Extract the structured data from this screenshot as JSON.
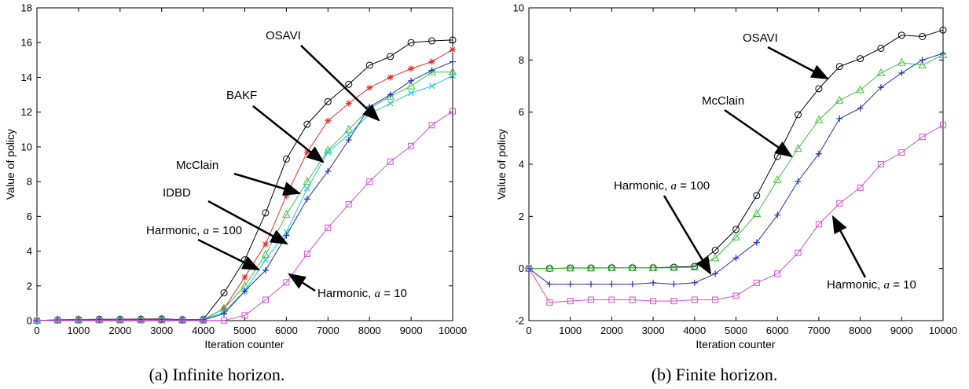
{
  "chart_data": [
    {
      "type": "line",
      "caption": "(a) Infinite horizon.",
      "xlabel": "Iteration counter",
      "ylabel": "Value of policy",
      "xlim": [
        0,
        10000
      ],
      "ylim": [
        0,
        18
      ],
      "xticks": [
        "0",
        "1000",
        "2000",
        "3000",
        "4000",
        "5000",
        "6000",
        "7000",
        "8000",
        "9000",
        "10000"
      ],
      "yticks": [
        "0",
        "2",
        "4",
        "6",
        "8",
        "10",
        "12",
        "14",
        "16",
        "18"
      ],
      "x": [
        0,
        500,
        1000,
        1500,
        2000,
        2500,
        3000,
        3500,
        4000,
        4500,
        5000,
        5500,
        6000,
        6500,
        7000,
        7500,
        8000,
        8500,
        9000,
        9500,
        10000
      ],
      "series": [
        {
          "name": "OSAVI",
          "color": "#000000",
          "marker": "circle",
          "values": [
            0,
            0.05,
            0.07,
            0.08,
            0.08,
            0.09,
            0.1,
            0.06,
            0.07,
            1.6,
            3.5,
            6.2,
            9.3,
            11.3,
            12.6,
            13.6,
            14.7,
            15.2,
            16.0,
            16.1,
            16.15
          ]
        },
        {
          "name": "BAKF",
          "color": "#e0302a",
          "marker": "star",
          "values": [
            0,
            0.05,
            0.06,
            0.07,
            0.07,
            0.08,
            0.08,
            0.05,
            0.06,
            0.7,
            2.5,
            4.4,
            7.2,
            9.7,
            11.5,
            12.5,
            13.4,
            14.0,
            14.5,
            14.9,
            15.6
          ]
        },
        {
          "name": "McClain",
          "color": "#40c040",
          "marker": "triangle",
          "values": [
            0,
            0.04,
            0.05,
            0.06,
            0.06,
            0.07,
            0.07,
            0.04,
            0.05,
            0.7,
            2.0,
            3.8,
            6.1,
            8.0,
            9.8,
            11.0,
            12.2,
            12.9,
            13.5,
            14.3,
            14.3
          ]
        },
        {
          "name": "IDBD",
          "color": "#20c8d8",
          "marker": "x",
          "values": [
            0,
            0.04,
            0.05,
            0.06,
            0.06,
            0.07,
            0.07,
            0.04,
            0.05,
            0.5,
            1.7,
            3.5,
            5.1,
            7.6,
            9.7,
            10.7,
            11.9,
            12.5,
            13.1,
            13.5,
            14.1
          ]
        },
        {
          "name": "Harmonic, a=100",
          "color": "#2030b0",
          "marker": "plus",
          "values": [
            0,
            0.03,
            0.04,
            0.05,
            0.05,
            0.06,
            0.06,
            0.03,
            0.04,
            0.4,
            1.7,
            2.9,
            4.9,
            7.0,
            8.6,
            10.4,
            12.3,
            13.0,
            13.8,
            14.4,
            14.9
          ]
        },
        {
          "name": "Harmonic, a=10",
          "color": "#d050d0",
          "marker": "square",
          "values": [
            0,
            0.01,
            0.01,
            0.02,
            0.02,
            0.02,
            0.02,
            0.01,
            0.01,
            0.01,
            0.3,
            1.2,
            2.2,
            3.85,
            5.35,
            6.7,
            8.0,
            9.15,
            10.05,
            11.25,
            12.05
          ]
        }
      ],
      "annotations": [
        {
          "label": "OSAVI"
        },
        {
          "label": "BAKF"
        },
        {
          "label": "McClain"
        },
        {
          "label": "IDBD"
        },
        {
          "label": "Harmonic, ",
          "param": "a",
          "value": " = 100"
        },
        {
          "label": "Harmonic, ",
          "param": "a",
          "value": " = 10"
        }
      ]
    },
    {
      "type": "line",
      "caption": "(b) Finite horizon.",
      "xlabel": "Iteration counter",
      "ylabel": "Value of policy",
      "xlim": [
        0,
        10000
      ],
      "ylim": [
        -2,
        10
      ],
      "xticks": [
        "0",
        "1000",
        "2000",
        "3000",
        "4000",
        "5000",
        "6000",
        "7000",
        "8000",
        "9000",
        "10000"
      ],
      "yticks": [
        "-2",
        "0",
        "2",
        "4",
        "6",
        "8",
        "10"
      ],
      "x": [
        0,
        500,
        1000,
        1500,
        2000,
        2500,
        3000,
        3500,
        4000,
        4500,
        5000,
        5500,
        6000,
        6500,
        7000,
        7500,
        8000,
        8500,
        9000,
        9500,
        10000
      ],
      "series": [
        {
          "name": "OSAVI",
          "color": "#000000",
          "marker": "circle",
          "values": [
            0,
            0,
            0.02,
            0.02,
            0.03,
            0.03,
            0.03,
            0.05,
            0.08,
            0.7,
            1.5,
            2.8,
            4.3,
            5.9,
            6.9,
            7.75,
            8.05,
            8.45,
            8.95,
            8.9,
            9.15
          ]
        },
        {
          "name": "McClain",
          "color": "#40c040",
          "marker": "triangle",
          "values": [
            0,
            0,
            0.01,
            0.01,
            0.02,
            0.02,
            0.02,
            0.03,
            0.05,
            0.4,
            1.2,
            2.1,
            3.4,
            4.6,
            5.7,
            6.45,
            6.85,
            7.5,
            7.9,
            7.8,
            8.2
          ]
        },
        {
          "name": "Harmonic, a=100",
          "color": "#2030b0",
          "marker": "plus",
          "values": [
            0,
            -0.6,
            -0.6,
            -0.6,
            -0.6,
            -0.6,
            -0.55,
            -0.6,
            -0.55,
            -0.2,
            0.4,
            1.0,
            2.05,
            3.35,
            4.4,
            5.75,
            6.15,
            6.95,
            7.5,
            8.0,
            8.25
          ]
        },
        {
          "name": "Harmonic, a=10",
          "color": "#d050d0",
          "marker": "square",
          "values": [
            0,
            -1.3,
            -1.25,
            -1.2,
            -1.2,
            -1.2,
            -1.25,
            -1.25,
            -1.2,
            -1.2,
            -1.05,
            -0.55,
            -0.2,
            0.6,
            1.7,
            2.5,
            3.1,
            4.0,
            4.45,
            5.05,
            5.5
          ]
        }
      ],
      "annotations": [
        {
          "label": "OSAVI"
        },
        {
          "label": "McClain"
        },
        {
          "label": "Harmonic, ",
          "param": "a",
          "value": " = 100"
        },
        {
          "label": "Harmonic, ",
          "param": "a",
          "value": " = 10"
        }
      ]
    }
  ]
}
